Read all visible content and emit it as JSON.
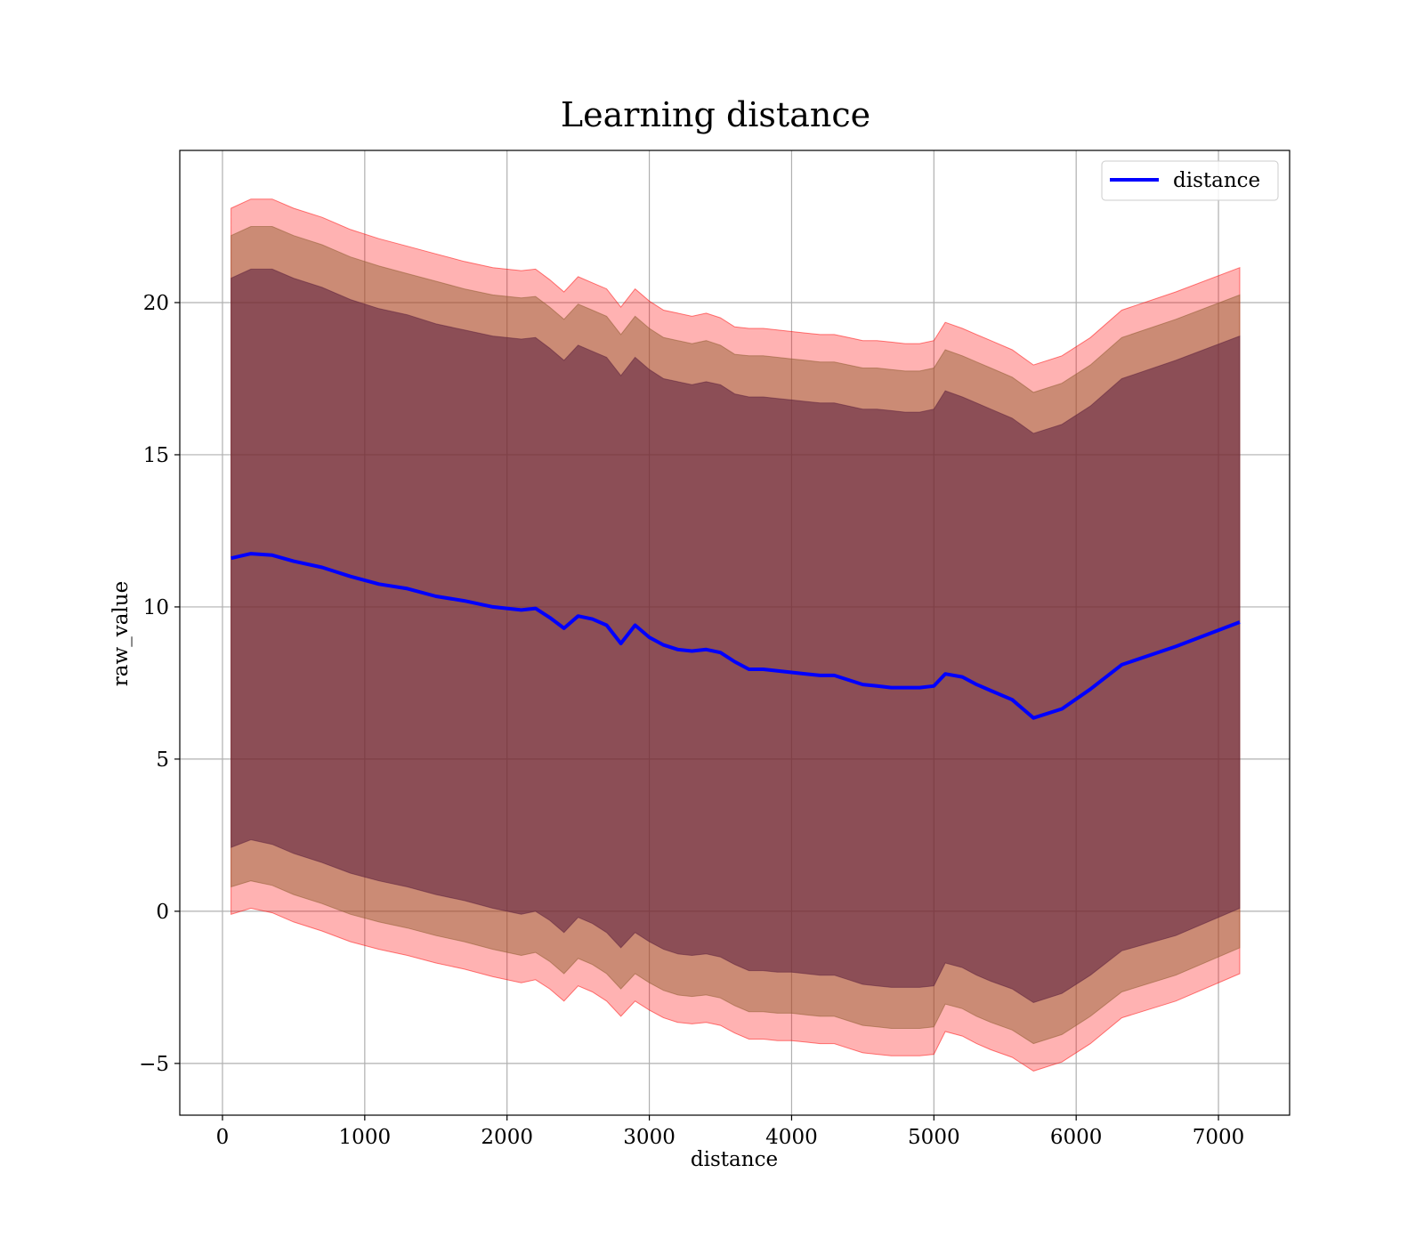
{
  "chart_data": {
    "type": "line",
    "title": "Learning distance",
    "xlabel": "distance",
    "ylabel": "raw_value",
    "xlim": [
      -300,
      7500
    ],
    "ylim": [
      -6.7,
      25
    ],
    "xticks": [
      0,
      1000,
      2000,
      3000,
      4000,
      5000,
      6000,
      7000
    ],
    "yticks": [
      -5,
      0,
      5,
      10,
      15,
      20
    ],
    "grid": true,
    "legend_position": "top-right",
    "colors": {
      "line": "#0000ff",
      "band_outer": "#ff0000",
      "band_middle": "#8b5a2b",
      "band_inner": "#5a1e3c",
      "grid": "#b0b0b0"
    },
    "series": [
      {
        "name": "distance",
        "x": [
          60,
          200,
          350,
          500,
          700,
          900,
          1100,
          1300,
          1500,
          1700,
          1900,
          2100,
          2200,
          2300,
          2400,
          2500,
          2600,
          2700,
          2800,
          2900,
          3000,
          3100,
          3200,
          3300,
          3400,
          3500,
          3600,
          3700,
          3800,
          3900,
          4000,
          4100,
          4200,
          4300,
          4400,
          4500,
          4600,
          4700,
          4800,
          4900,
          5000,
          5080,
          5200,
          5300,
          5400,
          5550,
          5700,
          5900,
          6100,
          6320,
          6700,
          7150
        ],
        "y": [
          11.6,
          11.75,
          11.7,
          11.5,
          11.3,
          11.0,
          10.75,
          10.6,
          10.35,
          10.2,
          10.0,
          9.9,
          9.95,
          9.65,
          9.3,
          9.7,
          9.6,
          9.4,
          8.8,
          9.4,
          9.0,
          8.75,
          8.6,
          8.55,
          8.6,
          8.5,
          8.2,
          7.95,
          7.95,
          7.9,
          7.85,
          7.8,
          7.75,
          7.75,
          7.6,
          7.45,
          7.4,
          7.35,
          7.35,
          7.35,
          7.4,
          7.8,
          7.7,
          7.45,
          7.25,
          6.95,
          6.35,
          6.65,
          7.3,
          8.1,
          8.7,
          9.5
        ],
        "band_inner": {
          "lower": [
            2.1,
            2.35,
            2.2,
            1.9,
            1.6,
            1.25,
            1.0,
            0.8,
            0.55,
            0.35,
            0.1,
            -0.1,
            0.0,
            -0.3,
            -0.7,
            -0.2,
            -0.4,
            -0.7,
            -1.2,
            -0.7,
            -1.0,
            -1.25,
            -1.4,
            -1.45,
            -1.4,
            -1.5,
            -1.75,
            -1.95,
            -1.95,
            -2.0,
            -2.0,
            -2.05,
            -2.1,
            -2.1,
            -2.25,
            -2.4,
            -2.45,
            -2.5,
            -2.5,
            -2.5,
            -2.45,
            -1.7,
            -1.85,
            -2.1,
            -2.3,
            -2.55,
            -3.0,
            -2.7,
            -2.1,
            -1.3,
            -0.8,
            0.1
          ],
          "upper": [
            20.8,
            21.1,
            21.1,
            20.8,
            20.5,
            20.1,
            19.8,
            19.6,
            19.3,
            19.1,
            18.9,
            18.8,
            18.85,
            18.5,
            18.1,
            18.6,
            18.4,
            18.2,
            17.6,
            18.2,
            17.8,
            17.5,
            17.4,
            17.3,
            17.4,
            17.3,
            17.0,
            16.9,
            16.9,
            16.85,
            16.8,
            16.75,
            16.7,
            16.7,
            16.6,
            16.5,
            16.5,
            16.45,
            16.4,
            16.4,
            16.5,
            17.1,
            16.9,
            16.7,
            16.5,
            16.2,
            15.7,
            16.0,
            16.6,
            17.5,
            18.1,
            18.9
          ]
        },
        "band_middle": {
          "lower": [
            0.8,
            1.0,
            0.85,
            0.55,
            0.25,
            -0.1,
            -0.35,
            -0.55,
            -0.8,
            -1.0,
            -1.25,
            -1.45,
            -1.35,
            -1.65,
            -2.05,
            -1.55,
            -1.75,
            -2.05,
            -2.55,
            -2.05,
            -2.35,
            -2.6,
            -2.75,
            -2.8,
            -2.75,
            -2.85,
            -3.1,
            -3.3,
            -3.3,
            -3.35,
            -3.35,
            -3.4,
            -3.45,
            -3.45,
            -3.6,
            -3.75,
            -3.8,
            -3.85,
            -3.85,
            -3.85,
            -3.8,
            -3.05,
            -3.2,
            -3.45,
            -3.65,
            -3.9,
            -4.35,
            -4.05,
            -3.45,
            -2.65,
            -2.1,
            -1.2
          ],
          "upper": [
            22.2,
            22.5,
            22.5,
            22.2,
            21.9,
            21.5,
            21.2,
            20.95,
            20.7,
            20.45,
            20.25,
            20.15,
            20.2,
            19.85,
            19.45,
            19.95,
            19.75,
            19.55,
            18.95,
            19.55,
            19.15,
            18.85,
            18.75,
            18.65,
            18.75,
            18.6,
            18.3,
            18.25,
            18.25,
            18.2,
            18.15,
            18.1,
            18.05,
            18.05,
            17.95,
            17.85,
            17.85,
            17.8,
            17.75,
            17.75,
            17.85,
            18.45,
            18.25,
            18.05,
            17.85,
            17.55,
            17.05,
            17.35,
            17.95,
            18.85,
            19.45,
            20.25
          ]
        },
        "band_outer": {
          "lower": [
            -0.1,
            0.1,
            -0.05,
            -0.35,
            -0.65,
            -1.0,
            -1.25,
            -1.45,
            -1.7,
            -1.9,
            -2.15,
            -2.35,
            -2.25,
            -2.55,
            -2.95,
            -2.45,
            -2.65,
            -2.95,
            -3.45,
            -2.95,
            -3.25,
            -3.5,
            -3.65,
            -3.7,
            -3.65,
            -3.75,
            -4.0,
            -4.2,
            -4.2,
            -4.25,
            -4.25,
            -4.3,
            -4.35,
            -4.35,
            -4.5,
            -4.65,
            -4.7,
            -4.75,
            -4.75,
            -4.75,
            -4.7,
            -3.95,
            -4.1,
            -4.35,
            -4.55,
            -4.8,
            -5.25,
            -4.95,
            -4.35,
            -3.5,
            -2.95,
            -2.05
          ],
          "upper": [
            23.1,
            23.4,
            23.4,
            23.1,
            22.8,
            22.4,
            22.1,
            21.85,
            21.6,
            21.35,
            21.15,
            21.05,
            21.1,
            20.75,
            20.35,
            20.85,
            20.65,
            20.45,
            19.85,
            20.45,
            20.05,
            19.75,
            19.65,
            19.55,
            19.65,
            19.5,
            19.2,
            19.15,
            19.15,
            19.1,
            19.05,
            19.0,
            18.95,
            18.95,
            18.85,
            18.75,
            18.75,
            18.7,
            18.65,
            18.65,
            18.75,
            19.35,
            19.15,
            18.95,
            18.75,
            18.45,
            17.95,
            18.25,
            18.85,
            19.75,
            20.35,
            21.15
          ]
        }
      }
    ]
  }
}
